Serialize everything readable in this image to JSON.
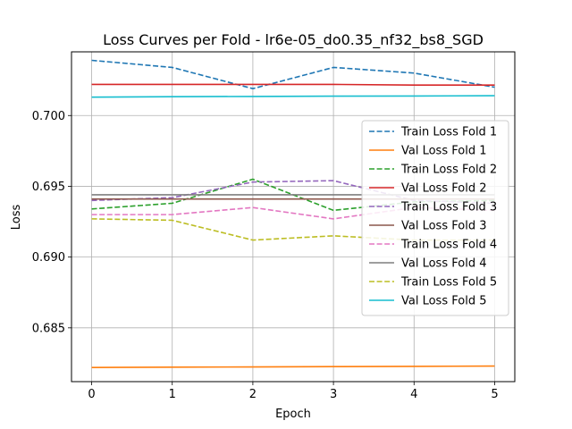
{
  "chart_data": {
    "type": "line",
    "title": "Loss Curves per Fold - lr6e-05_do0.35_nf32_bs8_SGD",
    "xlabel": "Epoch",
    "ylabel": "Loss",
    "x": [
      0,
      1,
      2,
      3,
      4,
      5
    ],
    "xticks": [
      "0",
      "1",
      "2",
      "3",
      "4",
      "5"
    ],
    "yticks": [
      "0.685",
      "0.690",
      "0.695",
      "0.700"
    ],
    "xlim": [
      -0.25,
      5.25
    ],
    "ylim": [
      0.6812,
      0.7045
    ],
    "grid": true,
    "legend_position": "upper-right",
    "series": [
      {
        "name": "Train Loss Fold 1",
        "color": "#1f77b4",
        "dash": true,
        "values": [
          0.7039,
          0.7034,
          0.7019,
          0.7034,
          0.703,
          0.702
        ]
      },
      {
        "name": "Val Loss Fold 1",
        "color": "#ff7f0e",
        "dash": false,
        "values": [
          0.6822,
          0.68222,
          0.68224,
          0.68226,
          0.68228,
          0.6823
        ]
      },
      {
        "name": "Train Loss Fold 2",
        "color": "#2ca02c",
        "dash": true,
        "values": [
          0.6934,
          0.6938,
          0.6955,
          0.6933,
          0.6939,
          0.694
        ]
      },
      {
        "name": "Val Loss Fold 2",
        "color": "#d62728",
        "dash": false,
        "values": [
          0.7022,
          0.7022,
          0.7022,
          0.7022,
          0.70215,
          0.70215
        ]
      },
      {
        "name": "Train Loss Fold 3",
        "color": "#9467bd",
        "dash": true,
        "values": [
          0.694,
          0.6942,
          0.6953,
          0.6954,
          0.694,
          0.6938
        ]
      },
      {
        "name": "Val Loss Fold 3",
        "color": "#8c564b",
        "dash": false,
        "values": [
          0.6941,
          0.6941,
          0.6941,
          0.6941,
          0.6941,
          0.6941
        ]
      },
      {
        "name": "Train Loss Fold 4",
        "color": "#e377c2",
        "dash": true,
        "values": [
          0.693,
          0.693,
          0.6935,
          0.6927,
          0.6935,
          0.6933
        ]
      },
      {
        "name": "Val Loss Fold 4",
        "color": "#7f7f7f",
        "dash": false,
        "values": [
          0.6944,
          0.6944,
          0.6944,
          0.6944,
          0.6944,
          0.6944
        ]
      },
      {
        "name": "Train Loss Fold 5",
        "color": "#bcbd22",
        "dash": true,
        "values": [
          0.6927,
          0.6926,
          0.6912,
          0.6915,
          0.6912,
          0.6912
        ]
      },
      {
        "name": "Val Loss Fold 5",
        "color": "#17becf",
        "dash": false,
        "values": [
          0.7013,
          0.70133,
          0.70135,
          0.70137,
          0.70138,
          0.7014
        ]
      }
    ]
  }
}
